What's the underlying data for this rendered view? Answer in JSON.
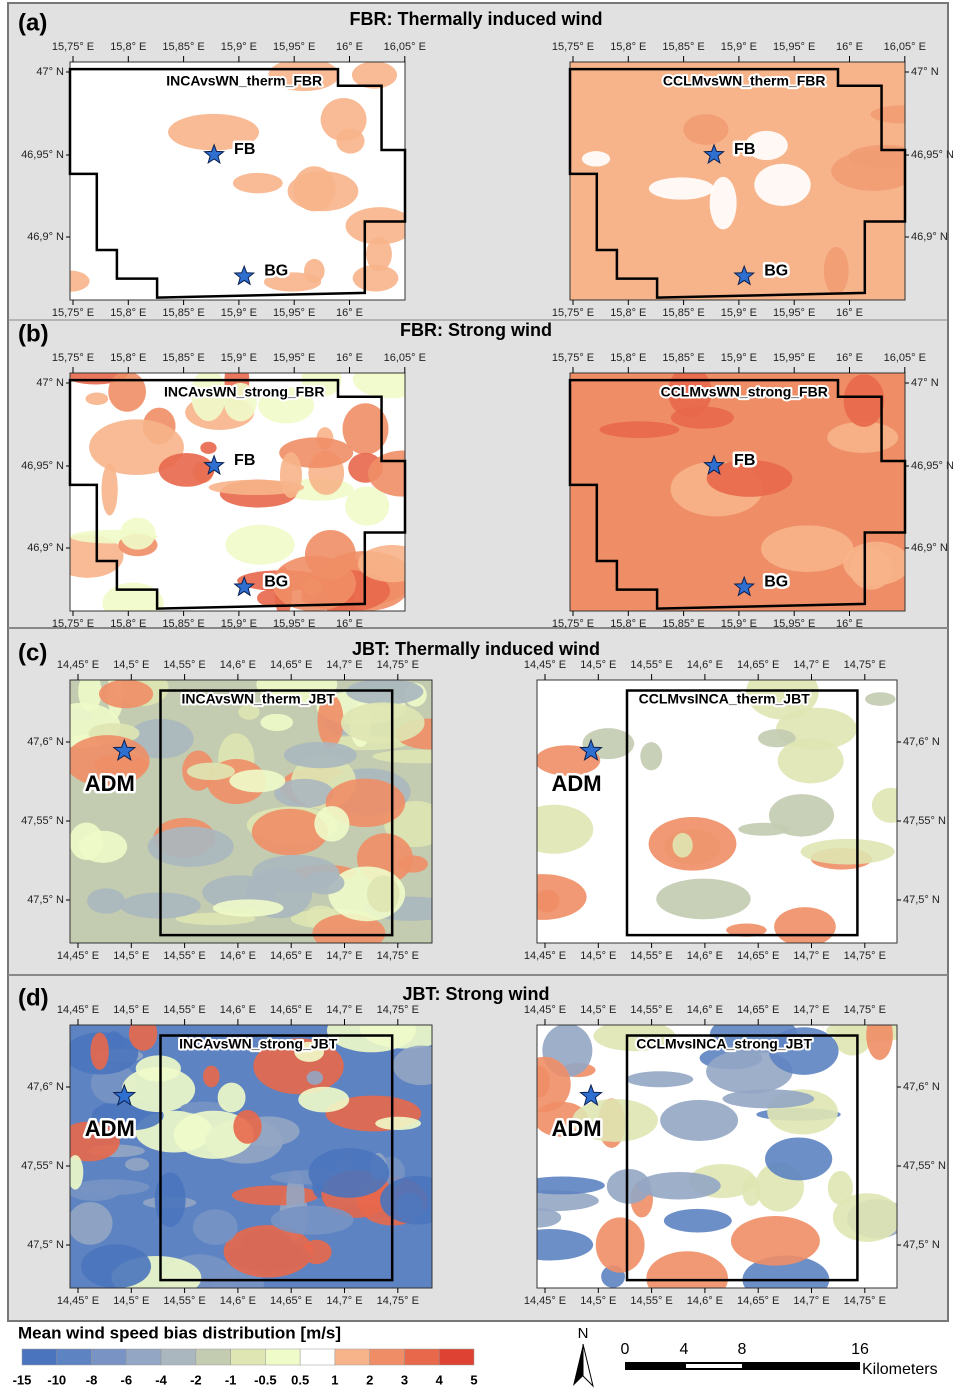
{
  "panels": [
    {
      "letter": "(a)",
      "title": "FBR: Thermally induced wind",
      "x_ticks": [
        "15,75° E",
        "15,8° E",
        "15,85° E",
        "15,9° E",
        "15,95° E",
        "16° E",
        "16,05° E"
      ],
      "y_ticks": [
        "47° N",
        "46,95° N",
        "46,9° N"
      ],
      "maps": [
        {
          "label": "INCAvsWN_therm_FBR",
          "stations": [
            "FB",
            "BG"
          ]
        },
        {
          "label": "CCLMvsWN_therm_FBR",
          "stations": [
            "FB",
            "BG"
          ]
        }
      ]
    },
    {
      "letter": "(b)",
      "title": "FBR: Strong wind",
      "x_ticks": [
        "15,75° E",
        "15,8° E",
        "15,85° E",
        "15,9° E",
        "15,95° E",
        "16° E",
        "16,05° E"
      ],
      "y_ticks": [
        "47° N",
        "46,95° N",
        "46,9° N"
      ],
      "maps": [
        {
          "label": "INCAvsWN_strong_FBR",
          "stations": [
            "FB",
            "BG"
          ]
        },
        {
          "label": "CCLMvsWN_strong_FBR",
          "stations": [
            "FB",
            "BG"
          ]
        }
      ]
    },
    {
      "letter": "(c)",
      "title": "JBT: Thermally induced wind",
      "x_ticks": [
        "14,45° E",
        "14,5° E",
        "14,55° E",
        "14,6° E",
        "14,65° E",
        "14,7° E",
        "14,75° E"
      ],
      "y_ticks": [
        "47,6° N",
        "47,55° N",
        "47,5° N"
      ],
      "maps": [
        {
          "label": "INCAvsWN_therm_JBT",
          "stations": [
            "ADM"
          ]
        },
        {
          "label": "CCLMvsINCA_therm_JBT",
          "stations": [
            "ADM"
          ]
        }
      ]
    },
    {
      "letter": "(d)",
      "title": "JBT: Strong wind",
      "x_ticks": [
        "14,45° E",
        "14,5° E",
        "14,55° E",
        "14,6° E",
        "14,65° E",
        "14,7° E",
        "14,75° E"
      ],
      "y_ticks": [
        "47,6° N",
        "47,55° N",
        "47,5° N"
      ],
      "maps": [
        {
          "label": "INCAvsWN_strong_JBT",
          "stations": [
            "ADM"
          ]
        },
        {
          "label": "CCLMvsINCA_strong_JBT",
          "stations": [
            "ADM"
          ]
        }
      ]
    }
  ],
  "legend": {
    "title": "Mean wind speed bias distribution [m/s]",
    "ticks": [
      -15,
      -10,
      -8,
      -6,
      -4,
      -2,
      -1,
      -0.5,
      0.5,
      1,
      2,
      3,
      4,
      5
    ],
    "colors": [
      "#4a74bd",
      "#5d83c2",
      "#7893c4",
      "#93a6c4",
      "#aab7bf",
      "#c3cbb0",
      "#dfe6b3",
      "#effbc9",
      "#ffffff",
      "#f7b48a",
      "#ef8e66",
      "#e8684b",
      "#dd4232"
    ]
  },
  "north": "N",
  "scale": {
    "ticks": [
      "0",
      "4",
      "8",
      "16"
    ],
    "unit": "Kilometers"
  }
}
